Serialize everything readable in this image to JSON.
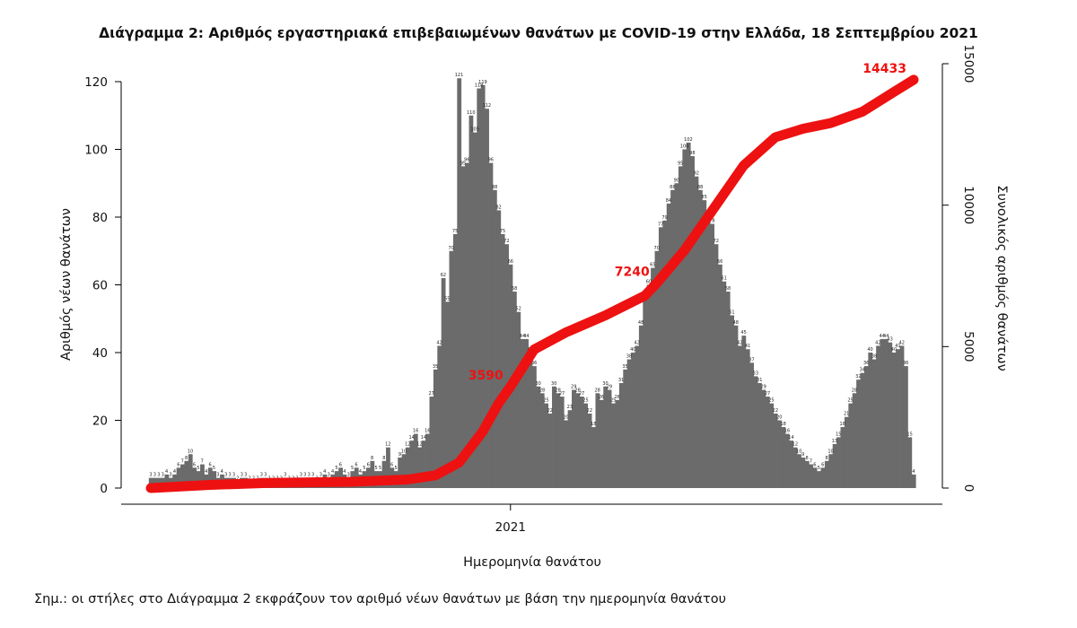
{
  "chart_data": {
    "type": "bar",
    "title": "Διάγραμμα 2: Αριθμός εργαστηριακά επιβεβαιωμένων θανάτων με COVID-19 στην Ελλάδα, 18 Σεπτεμβρίου 2021",
    "xlabel": "Ημερομηνία θανάτου",
    "ylabel": "Αριθμός νέων θανάτων",
    "y2label": "Συνολικός αριθμός θανάτων",
    "ylim": [
      0,
      125
    ],
    "y2lim": [
      0,
      15000
    ],
    "yticks": [
      0,
      20,
      40,
      60,
      80,
      100,
      120
    ],
    "y2ticks": [
      0,
      5000,
      10000,
      15000
    ],
    "x_tick_labels": [
      "2021"
    ],
    "x_tick_index": 91,
    "series": [
      {
        "values": [
          3,
          3,
          3,
          3,
          4,
          3,
          4,
          6,
          7,
          8,
          10,
          6,
          5,
          7,
          4,
          6,
          5,
          3,
          4,
          3,
          3,
          3,
          2,
          3,
          3,
          2,
          2,
          2,
          3,
          3,
          2,
          2,
          2,
          2,
          3,
          2,
          2,
          2,
          3,
          3,
          3,
          3,
          2,
          3,
          4,
          3,
          4,
          5,
          6,
          4,
          3,
          5,
          6,
          4,
          5,
          6,
          8,
          5,
          5,
          8,
          12,
          6,
          5,
          9,
          10,
          12,
          14,
          16,
          12,
          14,
          16,
          27,
          35,
          42,
          62,
          55,
          70,
          75,
          121,
          95,
          96,
          110,
          105,
          118,
          119,
          112,
          96,
          88,
          82,
          75,
          72,
          66,
          58,
          52,
          44,
          44,
          40,
          36,
          30,
          28,
          25,
          22,
          30,
          28,
          27,
          20,
          23,
          29,
          28,
          27,
          25,
          22,
          18,
          28,
          26,
          30,
          29,
          25,
          26,
          31,
          35,
          38,
          40,
          42,
          48,
          56,
          60,
          65,
          70,
          77,
          79,
          84,
          88,
          90,
          95,
          100,
          102,
          98,
          92,
          88,
          85,
          80,
          78,
          72,
          66,
          61,
          58,
          51,
          48,
          42,
          45,
          41,
          37,
          33,
          31,
          29,
          27,
          25,
          22,
          20,
          18,
          16,
          14,
          12,
          10,
          9,
          8,
          7,
          6,
          5,
          6,
          8,
          10,
          13,
          15,
          18,
          21,
          25,
          28,
          32,
          34,
          36,
          40,
          38,
          42,
          44,
          44,
          43,
          40,
          41,
          42,
          36,
          15,
          4
        ],
        "color": "#6b6b6b"
      },
      {
        "type": "line",
        "axis": "right",
        "color": "#ee1111",
        "points": [
          [
            0,
            0
          ],
          [
            15,
            110
          ],
          [
            30,
            180
          ],
          [
            50,
            220
          ],
          [
            65,
            300
          ],
          [
            72,
            450
          ],
          [
            78,
            900
          ],
          [
            84,
            2000
          ],
          [
            88,
            3000
          ],
          [
            91,
            3590
          ],
          [
            97,
            4900
          ],
          [
            105,
            5500
          ],
          [
            115,
            6100
          ],
          [
            125,
            6800
          ],
          [
            128,
            7240
          ],
          [
            135,
            8400
          ],
          [
            142,
            9800
          ],
          [
            150,
            11400
          ],
          [
            158,
            12400
          ],
          [
            165,
            12700
          ],
          [
            172,
            12900
          ],
          [
            180,
            13300
          ],
          [
            188,
            14000
          ],
          [
            193,
            14433
          ]
        ]
      }
    ],
    "annotations": [
      {
        "text": "3590",
        "x": 91,
        "value": 3590
      },
      {
        "text": "7240",
        "x": 128,
        "value": 7240
      },
      {
        "text": "14433",
        "x": 193,
        "value": 14433
      }
    ]
  },
  "note": "Σημ.: οι στήλες στο Διάγραμμα 2 εκφράζουν τον αριθμό νέων θανάτων με βάση την ημερομηνία θανάτου"
}
